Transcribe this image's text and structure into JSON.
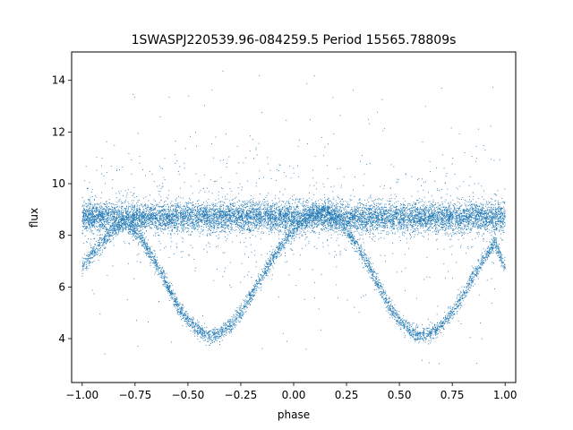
{
  "chart_data": {
    "type": "scatter",
    "title": "1SWASPJ220539.96-084259.5 Period 15565.78809s",
    "xlabel": "phase",
    "ylabel": "flux",
    "xlim": [
      -1.05,
      1.05
    ],
    "ylim": [
      2.3,
      15.1
    ],
    "xticks": [
      -1.0,
      -0.75,
      -0.5,
      -0.25,
      0.0,
      0.25,
      0.5,
      0.75,
      1.0
    ],
    "xtick_labels": [
      "−1.00",
      "−0.75",
      "−0.50",
      "−0.25",
      "0.00",
      "0.25",
      "0.50",
      "0.75",
      "1.00"
    ],
    "yticks": [
      4,
      6,
      8,
      10,
      12,
      14
    ],
    "ytick_labels": [
      "4",
      "6",
      "8",
      "10",
      "12",
      "14"
    ],
    "grid": false,
    "marker_color": "#1f77b4",
    "series": [
      {
        "x": [
          -1.0,
          -0.95,
          -0.9,
          -0.85,
          -0.8,
          -0.75,
          -0.7,
          -0.65,
          -0.6,
          -0.55,
          -0.5,
          -0.45,
          -0.4,
          -0.35,
          -0.3,
          -0.25,
          -0.2,
          -0.15,
          -0.1,
          -0.05,
          0.0,
          0.05,
          0.1,
          0.15,
          0.2,
          0.25,
          0.3,
          0.35,
          0.4,
          0.45,
          0.5,
          0.55,
          0.6,
          0.65,
          0.7,
          0.75,
          0.8,
          0.85,
          0.9,
          0.95,
          1.0
        ],
        "y_baseline": [
          8.7,
          8.7,
          8.7,
          8.7,
          8.7,
          8.7,
          8.7,
          8.7,
          8.7,
          8.7,
          8.7,
          8.7,
          8.7,
          8.7,
          8.7,
          8.7,
          8.7,
          8.7,
          8.7,
          8.7,
          8.7,
          8.7,
          8.7,
          8.7,
          8.7,
          8.7,
          8.7,
          8.7,
          8.7,
          8.7,
          8.7,
          8.7,
          8.7,
          8.7,
          8.7,
          8.7,
          8.7,
          8.7,
          8.7,
          8.7,
          8.7
        ],
        "y_dip": [
          6.8,
          7.3,
          7.8,
          8.2,
          8.5,
          8.2,
          7.6,
          6.9,
          6.1,
          5.3,
          4.7,
          4.3,
          4.1,
          4.2,
          4.5,
          5.0,
          5.7,
          6.4,
          7.1,
          7.7,
          8.2,
          8.6,
          8.9,
          9.0,
          8.7,
          8.2,
          7.6,
          6.9,
          6.1,
          5.3,
          4.7,
          4.3,
          4.1,
          4.2,
          4.5,
          5.0,
          5.7,
          6.4,
          7.1,
          7.7,
          6.8
        ]
      }
    ]
  }
}
